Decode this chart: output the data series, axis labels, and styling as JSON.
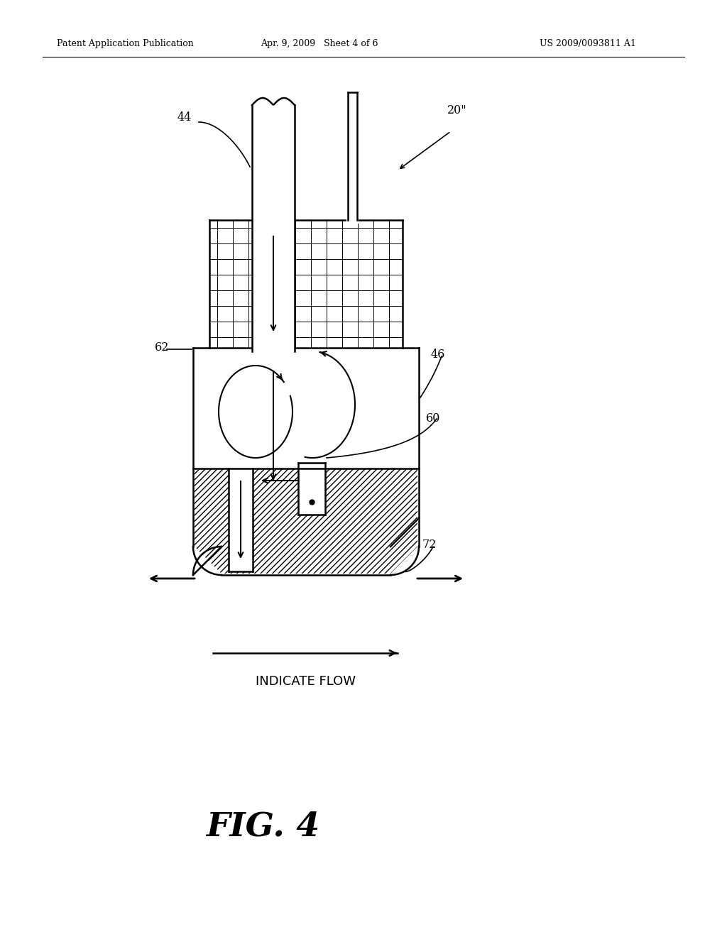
{
  "bg_color": "#ffffff",
  "header_left": "Patent Application Publication",
  "header_mid": "Apr. 9, 2009   Sheet 4 of 6",
  "header_right": "US 2009/0093811 A1",
  "fig_label": "FIG. 4",
  "indicate_flow_text": "INDICATE FLOW"
}
